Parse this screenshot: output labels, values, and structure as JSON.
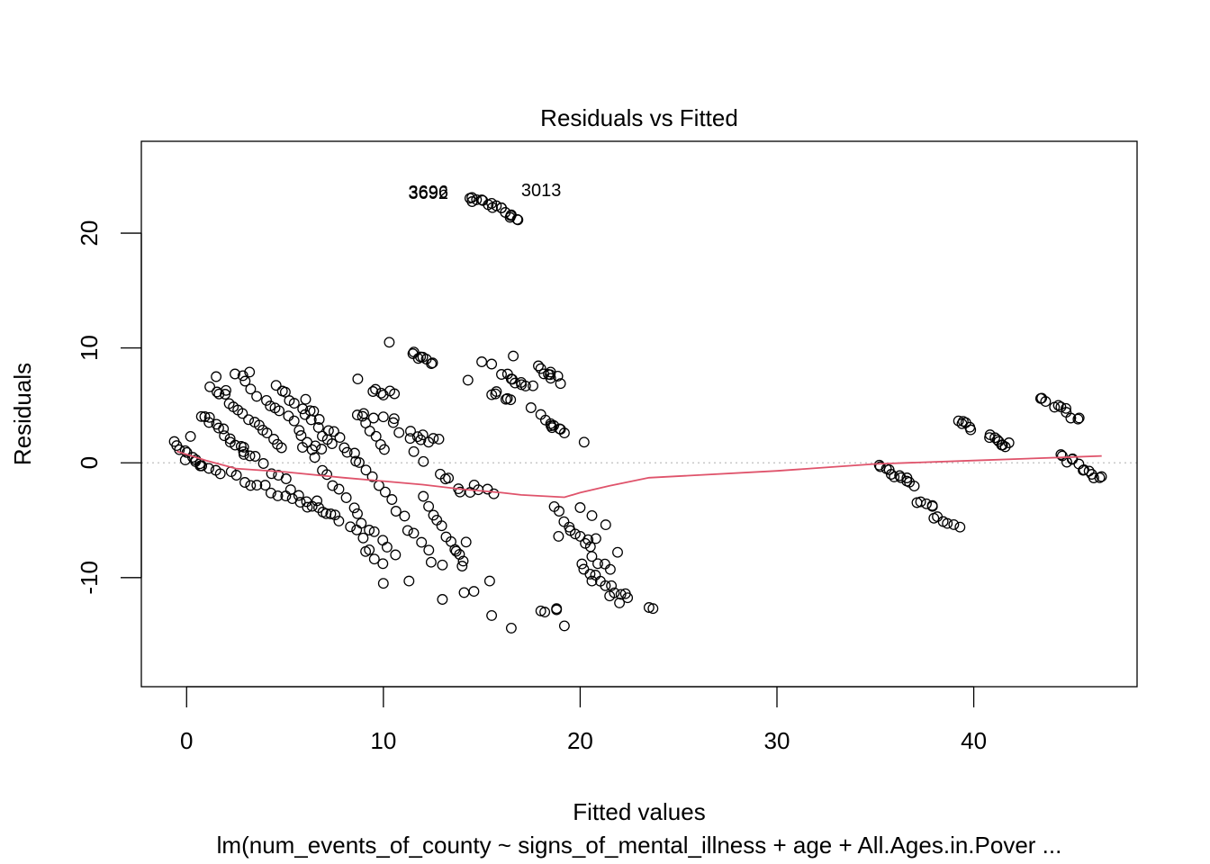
{
  "chart_data": {
    "type": "scatter",
    "title": "Residuals vs Fitted",
    "xlabel": "Fitted values",
    "ylabel": "Residuals",
    "subtitle": "lm(num_events_of_county ~ signs_of_mental_illness + age + All.Ages.in.Pover ...",
    "xlim": [
      -2.3,
      48.3
    ],
    "ylim": [
      -19.5,
      28
    ],
    "x_ticks": [
      0,
      10,
      20,
      30,
      40
    ],
    "y_ticks": [
      -10,
      0,
      10,
      20
    ],
    "reference_line_y": 0,
    "colors": {
      "points": "#000000",
      "smooth": "#DF536B",
      "reference": "#BEBEBE"
    },
    "outlier_labels": [
      {
        "text": "3692",
        "x": 13.3,
        "y": 23.0
      },
      {
        "text": "3696",
        "x": 13.3,
        "y": 23.05
      },
      {
        "text": "3013",
        "x": 17.0,
        "y": 23.2
      }
    ],
    "smooth": {
      "x": [
        -0.5,
        1,
        2.5,
        5,
        8,
        10,
        12,
        14,
        16,
        17,
        19.2,
        20,
        21.5,
        23.5,
        30,
        35,
        40,
        45,
        46.5
      ],
      "y": [
        1.0,
        0.2,
        -0.5,
        -0.8,
        -1.3,
        -1.6,
        -1.9,
        -2.3,
        -2.6,
        -2.8,
        -3.0,
        -2.6,
        -2.0,
        -1.3,
        -0.7,
        -0.1,
        0.2,
        0.5,
        0.6
      ]
    },
    "clusters": [
      {
        "x": [
          -0.5,
          0.8
        ],
        "y": [
          1.6,
          -0.4
        ],
        "n": 8
      },
      {
        "x": [
          0.7,
          3.2
        ],
        "y": [
          4.3,
          0.6
        ],
        "n": 15
      },
      {
        "x": [
          1.2,
          4.8
        ],
        "y": [
          6.8,
          1.4
        ],
        "n": 16
      },
      {
        "x": [
          2.5,
          6.8
        ],
        "y": [
          7.8,
          1.2
        ],
        "n": 16
      },
      {
        "x": [
          4.5,
          7.5
        ],
        "y": [
          6.9,
          1.5
        ],
        "n": 12
      },
      {
        "x": [
          6.0,
          8.5
        ],
        "y": [
          5.4,
          0.2
        ],
        "n": 10
      },
      {
        "x": [
          0.0,
          7.5
        ],
        "y": [
          0.3,
          -4.5
        ],
        "n": 22
      },
      {
        "x": [
          3.0,
          9.0
        ],
        "y": [
          0.8,
          -6.5
        ],
        "n": 16
      },
      {
        "x": [
          6.0,
          10.5
        ],
        "y": [
          1.5,
          -8.2
        ],
        "n": 16
      },
      {
        "x": [
          8.5,
          12.5
        ],
        "y": [
          0.8,
          -8.5
        ],
        "n": 14
      },
      {
        "x": [
          8.6,
          10.0
        ],
        "y": [
          4.4,
          1.2
        ],
        "n": 7
      },
      {
        "x": [
          9.5,
          10.6
        ],
        "y": [
          6.4,
          5.9
        ],
        "n": 4
      },
      {
        "x": [
          9.0,
          10.0
        ],
        "y": [
          -7.5,
          -8.5
        ],
        "n": 4
      },
      {
        "x": [
          10.5,
          12.0
        ],
        "y": [
          3.6,
          0.4
        ],
        "n": 5
      },
      {
        "x": [
          11.3,
          12.8
        ],
        "y": [
          2.7,
          1.9
        ],
        "n": 5
      },
      {
        "x": [
          11.5,
          12.5
        ],
        "y": [
          9.5,
          8.8
        ],
        "n": 5
      },
      {
        "x": [
          12.0,
          14.0
        ],
        "y": [
          -3.0,
          -8.8
        ],
        "n": 10
      },
      {
        "x": [
          12.8,
          14.3
        ],
        "y": [
          -0.8,
          -2.8
        ],
        "n": 6
      },
      {
        "x": [
          14.5,
          15.7
        ],
        "y": [
          -1.8,
          -2.6
        ],
        "n": 4
      },
      {
        "x": [
          14.4,
          16.8
        ],
        "y": [
          23.2,
          21.2
        ],
        "n": 12
      },
      {
        "x": [
          16.3,
          17.3
        ],
        "y": [
          7.8,
          6.6
        ],
        "n": 5
      },
      {
        "x": [
          15.6,
          16.4
        ],
        "y": [
          6.2,
          5.6
        ],
        "n": 4
      },
      {
        "x": [
          17.9,
          18.8
        ],
        "y": [
          8.2,
          7.4
        ],
        "n": 6
      },
      {
        "x": [
          18.3,
          19.0
        ],
        "y": [
          3.5,
          2.7
        ],
        "n": 6
      },
      {
        "x": [
          18.6,
          21.5
        ],
        "y": [
          -4.0,
          -9.5
        ],
        "n": 12
      },
      {
        "x": [
          20.0,
          22.3
        ],
        "y": [
          -9.0,
          -11.8
        ],
        "n": 10
      },
      {
        "x": [
          35.3,
          37.0
        ],
        "y": [
          -0.4,
          -1.8
        ],
        "n": 8
      },
      {
        "x": [
          37.2,
          38.0
        ],
        "y": [
          -3.2,
          -3.8
        ],
        "n": 3
      },
      {
        "x": [
          38.0,
          39.0
        ],
        "y": [
          -4.8,
          -5.2
        ],
        "n": 5
      },
      {
        "x": [
          39.2,
          39.8
        ],
        "y": [
          3.6,
          3.1
        ],
        "n": 4
      },
      {
        "x": [
          40.8,
          41.7
        ],
        "y": [
          2.3,
          1.5
        ],
        "n": 6
      },
      {
        "x": [
          43.4,
          45.3
        ],
        "y": [
          5.6,
          3.9
        ],
        "n": 7
      },
      {
        "x": [
          44.4,
          46.4
        ],
        "y": [
          0.6,
          -1.3
        ],
        "n": 8
      }
    ],
    "points": [
      [
        1.5,
        7.5
      ],
      [
        2.0,
        6.3
      ],
      [
        3.2,
        7.9
      ],
      [
        8.7,
        7.3
      ],
      [
        10.3,
        10.5
      ],
      [
        9.6,
        6.4
      ],
      [
        10.0,
        5.9
      ],
      [
        10.5,
        3.5
      ],
      [
        11.5,
        9.5
      ],
      [
        12.0,
        9.2
      ],
      [
        12.5,
        8.7
      ],
      [
        14.3,
        7.2
      ],
      [
        15.0,
        8.8
      ],
      [
        15.5,
        8.6
      ],
      [
        16.6,
        9.3
      ],
      [
        16.0,
        7.7
      ],
      [
        16.5,
        7.3
      ],
      [
        17.0,
        7.0
      ],
      [
        17.6,
        6.7
      ],
      [
        18.0,
        8.2
      ],
      [
        18.5,
        7.9
      ],
      [
        19.0,
        6.9
      ],
      [
        17.5,
        4.8
      ],
      [
        18.0,
        4.2
      ],
      [
        18.5,
        3.4
      ],
      [
        19.2,
        2.6
      ],
      [
        20.2,
        1.8
      ],
      [
        15.7,
        6.0
      ],
      [
        16.3,
        5.6
      ],
      [
        14.5,
        23.1
      ],
      [
        15.0,
        22.9
      ],
      [
        15.5,
        22.6
      ],
      [
        16.0,
        22.2
      ],
      [
        16.5,
        21.6
      ],
      [
        16.8,
        21.2
      ],
      [
        10.0,
        -10.5
      ],
      [
        11.3,
        -10.3
      ],
      [
        13.0,
        -11.9
      ],
      [
        14.1,
        -11.3
      ],
      [
        14.6,
        -11.2
      ],
      [
        15.4,
        -10.3
      ],
      [
        15.5,
        -13.3
      ],
      [
        16.5,
        -14.4
      ],
      [
        18.0,
        -12.9
      ],
      [
        18.2,
        -13.0
      ],
      [
        18.8,
        -12.7
      ],
      [
        19.2,
        -14.2
      ],
      [
        18.8,
        -12.8
      ],
      [
        23.5,
        -12.6
      ],
      [
        23.7,
        -12.7
      ],
      [
        19.5,
        -5.9
      ],
      [
        18.9,
        -6.4
      ],
      [
        14.2,
        -6.9
      ],
      [
        13.7,
        -7.7
      ],
      [
        13.0,
        -8.9
      ],
      [
        14.0,
        -9.0
      ],
      [
        35.2,
        -0.2
      ],
      [
        35.7,
        -0.6
      ],
      [
        36.3,
        -1.3
      ],
      [
        36.6,
        -1.6
      ],
      [
        37.3,
        -3.4
      ],
      [
        37.9,
        -3.8
      ],
      [
        39.3,
        -5.6
      ],
      [
        39.4,
        3.4
      ],
      [
        39.8,
        3.1
      ],
      [
        40.8,
        2.2
      ],
      [
        41.2,
        2.0
      ],
      [
        41.6,
        1.4
      ],
      [
        43.4,
        5.6
      ],
      [
        44.3,
        5.0
      ],
      [
        44.7,
        4.4
      ],
      [
        45.3,
        3.8
      ],
      [
        44.5,
        0.6
      ],
      [
        45.0,
        0.3
      ],
      [
        45.6,
        -0.6
      ],
      [
        46.0,
        -1.0
      ],
      [
        46.4,
        -1.3
      ],
      [
        20.0,
        -3.9
      ],
      [
        20.6,
        -4.6
      ],
      [
        21.3,
        -5.4
      ],
      [
        20.4,
        -6.7
      ],
      [
        20.8,
        -6.6
      ],
      [
        21.9,
        -7.8
      ],
      [
        20.6,
        -10.3
      ],
      [
        21.5,
        -11.6
      ],
      [
        22.0,
        -12.2
      ],
      [
        22.3,
        -11.4
      ],
      [
        -0.5,
        1.5
      ],
      [
        0.2,
        2.3
      ],
      [
        9.0,
        4.3
      ],
      [
        9.5,
        3.9
      ],
      [
        10.0,
        4.0
      ],
      [
        11.9,
        2.0
      ],
      [
        12.3,
        1.8
      ]
    ]
  }
}
